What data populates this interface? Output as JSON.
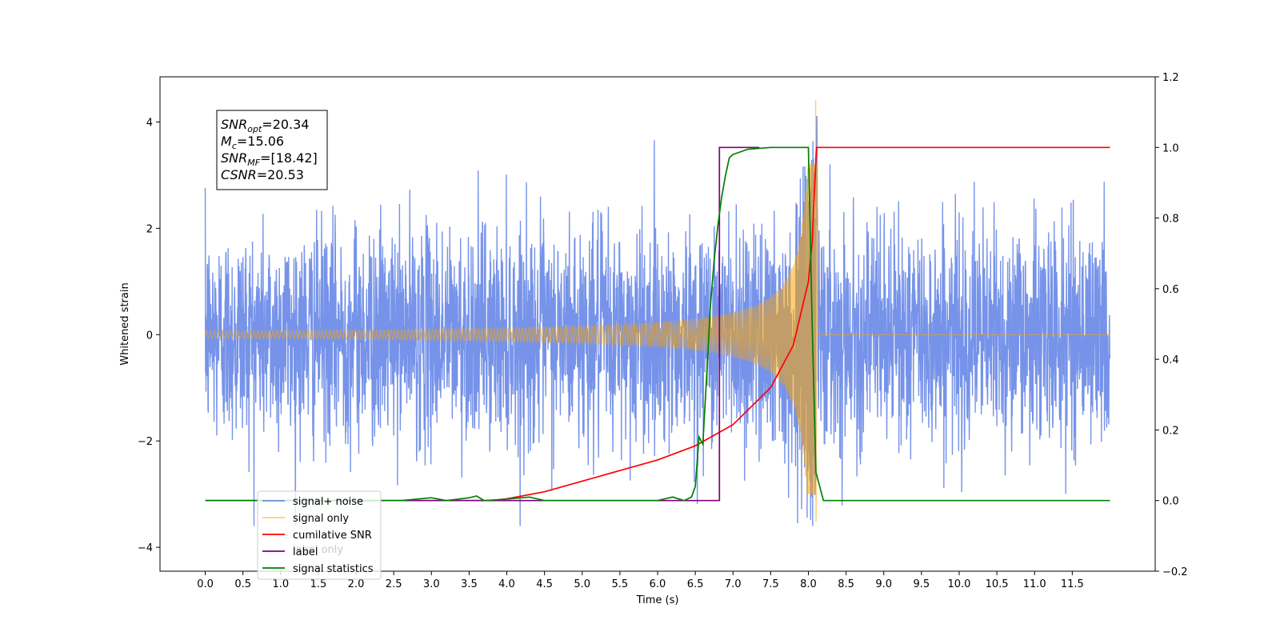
{
  "chart_data": {
    "type": "line",
    "xlabel": "Time (s)",
    "ylabel": "Whitened strain",
    "xlim": [
      -0.6,
      12.6
    ],
    "ylim_left": [
      -4.45,
      4.85
    ],
    "ylim_right": [
      -0.2,
      1.2
    ],
    "x_ticks": [
      0.0,
      0.5,
      1.0,
      1.5,
      2.0,
      2.5,
      3.0,
      3.5,
      4.0,
      4.5,
      5.0,
      5.5,
      6.0,
      6.5,
      7.0,
      7.5,
      8.0,
      8.5,
      9.0,
      9.5,
      10.0,
      10.5,
      11.0,
      11.5
    ],
    "x_tick_labels": [
      "0.0",
      "0.5",
      "1.0",
      "1.5",
      "2.0",
      "2.5",
      "3.0",
      "3.5",
      "4.0",
      "4.5",
      "5.0",
      "5.5",
      "6.0",
      "6.5",
      "7.0",
      "7.5",
      "8.0",
      "8.5",
      "9.0",
      "9.5",
      "10.0",
      "10.5",
      "11.0",
      "11.5"
    ],
    "y_ticks_left": [
      -4,
      -2,
      0,
      2,
      4
    ],
    "y_tick_labels_left": [
      "−4",
      "−2",
      "0",
      "2",
      "4"
    ],
    "y_ticks_right": [
      -0.2,
      0.0,
      0.2,
      0.4,
      0.6,
      0.8,
      1.0,
      1.2
    ],
    "y_tick_labels_right": [
      "−0.2",
      "0.0",
      "0.2",
      "0.4",
      "0.6",
      "0.8",
      "1.0",
      "1.2"
    ],
    "annotation": {
      "lines": [
        {
          "main": "SNR",
          "sub": "opt",
          "value": "=20.34"
        },
        {
          "main": "M",
          "sub": "c",
          "value": "=15.06"
        },
        {
          "main": "SNR",
          "sub": "MF",
          "value": "=[18.42]"
        },
        {
          "main": "CSNR",
          "sub": "",
          "value": "=20.53"
        }
      ]
    },
    "legend": {
      "placement": "lower-left",
      "entries": [
        {
          "label": "signal+ noise",
          "color": "#4169e1"
        },
        {
          "label": "signal only",
          "color": "#ffa500"
        },
        {
          "label": "cumilative SNR",
          "color": "#ff0000"
        },
        {
          "label": "label",
          "color": "#800080"
        },
        {
          "label": "signal statistics",
          "color": "#008000"
        }
      ]
    },
    "ghost_legend_text": [
      "label only"
    ],
    "series": [
      {
        "name": "signal+ noise",
        "axis": "left",
        "color": "#4169e1",
        "opacity": 0.72,
        "x_range": [
          0.0,
          12.0
        ],
        "std": 1.0,
        "envelope": [
          -3.6,
          4.1
        ]
      },
      {
        "name": "signal only",
        "axis": "left",
        "color": "#ffa500",
        "opacity": 0.55,
        "x_range": [
          0.0,
          12.0
        ],
        "merger_time": 8.1,
        "peak_amplitude": 4.4,
        "min_amplitude": -3.5
      },
      {
        "name": "cumilative SNR",
        "axis": "right",
        "color": "#ff0000",
        "x": [
          0.0,
          3.8,
          4.0,
          4.5,
          5.0,
          5.5,
          6.0,
          6.5,
          7.0,
          7.5,
          7.8,
          8.0,
          8.05,
          8.1,
          8.11,
          12.0
        ],
        "y": [
          0.0,
          0.0,
          0.005,
          0.025,
          0.055,
          0.085,
          0.115,
          0.155,
          0.215,
          0.32,
          0.44,
          0.62,
          0.73,
          0.97,
          1.0,
          1.0
        ]
      },
      {
        "name": "label",
        "axis": "right",
        "color": "#800080",
        "x": [
          0.0,
          6.82,
          6.82,
          7.35
        ],
        "y": [
          0.0,
          0.0,
          1.0,
          1.0
        ]
      },
      {
        "name": "signal statistics",
        "axis": "right",
        "color": "#008000",
        "x": [
          0.0,
          2.6,
          3.0,
          3.2,
          3.5,
          3.6,
          3.7,
          4.0,
          4.3,
          4.5,
          6.0,
          6.2,
          6.35,
          6.45,
          6.5,
          6.55,
          6.6,
          6.65,
          6.7,
          6.75,
          6.8,
          6.85,
          6.9,
          6.95,
          7.0,
          7.2,
          7.5,
          8.0,
          8.05,
          8.1,
          8.15,
          8.2,
          12.0
        ],
        "y": [
          0.0,
          0.0,
          0.008,
          0.0,
          0.008,
          0.013,
          0.0,
          0.004,
          0.01,
          0.0,
          0.0,
          0.01,
          0.0,
          0.01,
          0.04,
          0.18,
          0.16,
          0.35,
          0.55,
          0.68,
          0.78,
          0.86,
          0.92,
          0.97,
          0.98,
          0.995,
          1.0,
          1.0,
          0.5,
          0.08,
          0.04,
          0.0,
          0.0
        ]
      }
    ],
    "grid": false
  }
}
